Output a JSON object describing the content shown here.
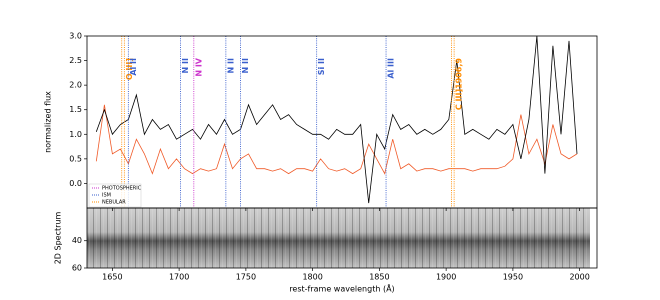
{
  "chart_data": [
    {
      "type": "line",
      "ylabel": "normalized flux",
      "xlim": [
        1631,
        2013
      ],
      "ylim": [
        -0.5,
        3.0
      ],
      "xticks": [
        1650,
        1700,
        1750,
        1800,
        1850,
        1900,
        1950,
        2000
      ],
      "yticks": [
        {
          "value": 0,
          "label": "0.0"
        },
        0.5,
        {
          "value": 1,
          "label": "1.0"
        },
        1.5,
        {
          "value": 2,
          "label": "2.0"
        },
        2.5,
        {
          "value": 3,
          "label": "3.0"
        }
      ],
      "x": [
        1638,
        1644,
        1650,
        1656,
        1662,
        1668,
        1674,
        1680,
        1686,
        1692,
        1698,
        1704,
        1710,
        1716,
        1722,
        1728,
        1734,
        1740,
        1746,
        1752,
        1758,
        1764,
        1770,
        1776,
        1782,
        1788,
        1794,
        1800,
        1806,
        1812,
        1818,
        1824,
        1830,
        1836,
        1842,
        1848,
        1854,
        1860,
        1866,
        1872,
        1878,
        1884,
        1890,
        1896,
        1902,
        1908,
        1914,
        1920,
        1926,
        1932,
        1938,
        1944,
        1950,
        1956,
        1962,
        1968,
        1974,
        1980,
        1986,
        1992,
        1998
      ],
      "series": [
        {
          "color": "#f05a28",
          "values": [
            0.45,
            1.6,
            0.6,
            0.7,
            0.4,
            0.9,
            0.6,
            0.2,
            0.7,
            0.3,
            0.5,
            0.3,
            0.2,
            0.3,
            0.25,
            0.3,
            0.8,
            0.3,
            0.5,
            0.6,
            0.3,
            0.3,
            0.25,
            0.3,
            0.2,
            0.3,
            0.3,
            0.25,
            0.5,
            0.3,
            0.25,
            0.3,
            0.2,
            0.3,
            0.8,
            0.5,
            0.2,
            0.9,
            0.3,
            0.4,
            0.25,
            0.3,
            0.3,
            0.25,
            0.3,
            0.3,
            0.3,
            0.25,
            0.3,
            0.3,
            0.3,
            0.35,
            0.5,
            1.4,
            0.6,
            0.9,
            0.4,
            1.2,
            0.6,
            0.5,
            0.6
          ]
        },
        {
          "color": "#000000",
          "values": [
            1.05,
            1.5,
            1.0,
            1.2,
            1.3,
            1.8,
            1.0,
            1.3,
            1.1,
            1.2,
            0.9,
            1.0,
            1.1,
            0.9,
            1.2,
            1.0,
            1.3,
            1.0,
            1.1,
            1.6,
            1.2,
            1.4,
            1.6,
            1.3,
            1.4,
            1.2,
            1.1,
            1.0,
            1.0,
            0.9,
            1.1,
            1.0,
            1.0,
            1.2,
            -0.4,
            1.0,
            0.7,
            1.4,
            1.1,
            1.2,
            1.0,
            1.1,
            1.0,
            1.1,
            1.3,
            2.5,
            1.0,
            1.1,
            1.0,
            0.9,
            1.1,
            1.0,
            1.2,
            0.5,
            1.3,
            3.0,
            0.2,
            2.8,
            1.0,
            2.9,
            0.6
          ]
        }
      ],
      "markers": [
        {
          "label": "O III]",
          "color": "#ff8c00",
          "x": [
            1657,
            1659
          ]
        },
        {
          "label": "Al II",
          "color": "#3a5fcd",
          "x": [
            1662
          ]
        },
        {
          "label": "N II",
          "color": "#3a5fcd",
          "x": [
            1701
          ]
        },
        {
          "label": "N IV",
          "color": "#cc33cc",
          "x": [
            1711
          ]
        },
        {
          "label": "N II",
          "color": "#3a5fcd",
          "x": [
            1735
          ]
        },
        {
          "label": "N II",
          "color": "#3a5fcd",
          "x": [
            1746
          ]
        },
        {
          "label": "Si II",
          "color": "#3a5fcd",
          "x": [
            1803
          ]
        },
        {
          "label": "Al III",
          "color": "#3a5fcd",
          "x": [
            1855
          ]
        },
        {
          "label": "C III]1906,9",
          "color": "#ff8c00",
          "x": [
            1904,
            1906
          ]
        }
      ],
      "marker_types": [
        {
          "name": "PHOTOSPHERIC",
          "color": "#cc33cc"
        },
        {
          "name": "ISM",
          "color": "#3a5fcd"
        },
        {
          "name": "NEBULAR",
          "color": "#ff8c00"
        }
      ],
      "legend": "lower left"
    },
    {
      "type": "image",
      "ylabel": "2D Spectrum",
      "xlabel": "rest-frame wavelength (Å)",
      "xlim": [
        1631,
        2013
      ],
      "ylim": [
        60,
        16
      ],
      "yticks": [
        40,
        60
      ],
      "xticks": [
        1650,
        1700,
        1750,
        1800,
        1850,
        1900,
        1950,
        2000
      ]
    }
  ]
}
